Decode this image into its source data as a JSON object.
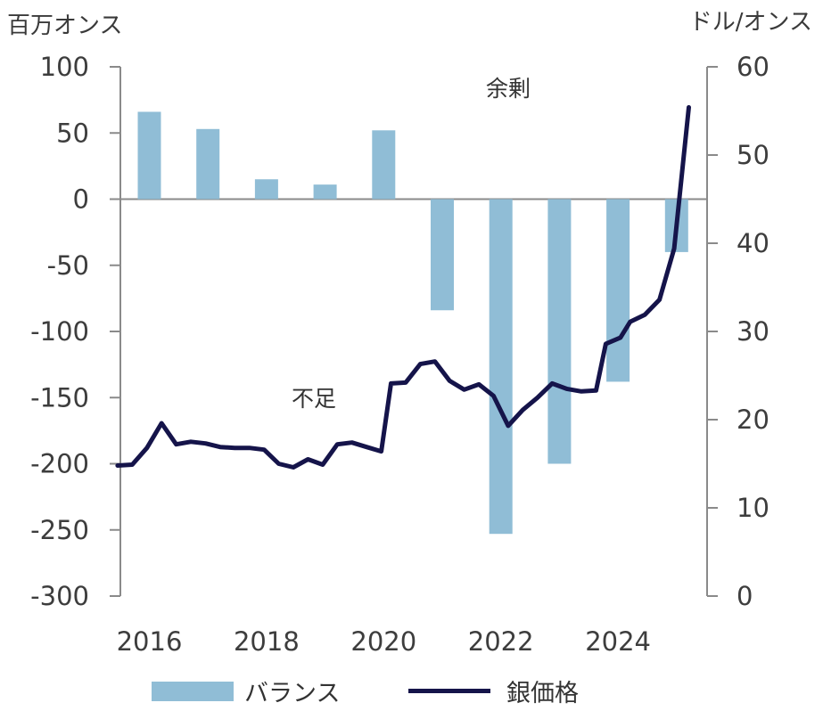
{
  "header": {
    "left_unit": "百万オンス",
    "right_unit": "ドル/オンス"
  },
  "legend": {
    "balance_label": "バランス",
    "price_label": "銀価格"
  },
  "colors": {
    "bar": "#90BDD6",
    "line": "#15144A",
    "axis": "#8a8a8a"
  },
  "chart_data": {
    "type": "bar+line",
    "x_ticks": [
      "2016",
      "2018",
      "2020",
      "2022",
      "2024"
    ],
    "y_left": {
      "label": "百万オンス",
      "range": [
        -300,
        100
      ],
      "ticks": [
        100,
        50,
        0,
        -50,
        -100,
        -150,
        -200,
        -250,
        -300
      ]
    },
    "y_right": {
      "label": "ドル/オンス",
      "range": [
        0,
        60
      ],
      "ticks": [
        60,
        50,
        40,
        30,
        20,
        10,
        0
      ]
    },
    "series": [
      {
        "name": "バランス",
        "type": "bar",
        "axis": "left",
        "x": [
          2016,
          2017,
          2018,
          2019,
          2020,
          2021,
          2022,
          2023,
          2024,
          2025
        ],
        "values": [
          66,
          53,
          15,
          11,
          52,
          -84,
          -253,
          -200,
          -138,
          -40
        ]
      },
      {
        "name": "銀価格",
        "type": "line",
        "axis": "right",
        "points": [
          [
            "2015-12",
            14.8
          ],
          [
            "2016-03",
            14.9
          ],
          [
            "2016-06",
            16.8
          ],
          [
            "2016-09",
            19.6
          ],
          [
            "2016-12",
            17.2
          ],
          [
            "2017-03",
            17.5
          ],
          [
            "2017-06",
            17.3
          ],
          [
            "2017-09",
            16.9
          ],
          [
            "2017-12",
            16.8
          ],
          [
            "2018-03",
            16.8
          ],
          [
            "2018-06",
            16.6
          ],
          [
            "2018-09",
            15.0
          ],
          [
            "2018-12",
            14.6
          ],
          [
            "2019-03",
            15.5
          ],
          [
            "2019-06",
            14.9
          ],
          [
            "2019-09",
            17.2
          ],
          [
            "2019-12",
            17.4
          ],
          [
            "2020-03",
            16.9
          ],
          [
            "2020-06",
            16.4
          ],
          [
            "2020-08",
            24.1
          ],
          [
            "2020-11",
            24.2
          ],
          [
            "2021-02",
            26.3
          ],
          [
            "2021-05",
            26.6
          ],
          [
            "2021-08",
            24.4
          ],
          [
            "2021-11",
            23.4
          ],
          [
            "2022-02",
            24.0
          ],
          [
            "2022-05",
            22.7
          ],
          [
            "2022-08",
            19.3
          ],
          [
            "2022-11",
            21.1
          ],
          [
            "2023-02",
            22.5
          ],
          [
            "2023-05",
            24.1
          ],
          [
            "2023-08",
            23.5
          ],
          [
            "2023-11",
            23.2
          ],
          [
            "2024-02",
            23.3
          ],
          [
            "2024-04",
            28.6
          ],
          [
            "2024-07",
            29.3
          ],
          [
            "2024-09",
            31.1
          ],
          [
            "2024-12",
            31.9
          ],
          [
            "2025-03",
            33.6
          ],
          [
            "2025-06",
            39.4
          ],
          [
            "2025-09",
            55.4
          ]
        ]
      }
    ],
    "annotations": [
      "余剰",
      "不足"
    ]
  }
}
